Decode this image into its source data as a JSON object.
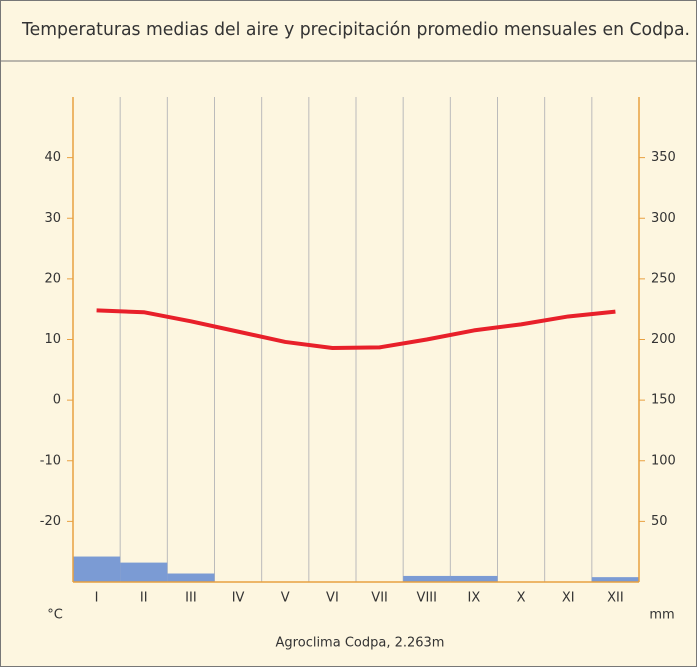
{
  "chart_data": {
    "type": "climograph",
    "title": "Temperaturas medias del aire y precipitación promedio mensuales en Codpa.",
    "caption": "Agroclima Codpa, 2.263m",
    "y_unit": "°C",
    "y2_unit": "mm",
    "categories": [
      "I",
      "II",
      "III",
      "IV",
      "V",
      "VI",
      "VII",
      "VIII",
      "IX",
      "X",
      "XI",
      "XII"
    ],
    "series": [
      {
        "type": "line",
        "color": "#e8202a",
        "values": [
          14.8,
          14.5,
          13.0,
          11.3,
          9.6,
          8.6,
          8.7,
          10.0,
          11.5,
          12.5,
          13.8,
          14.6
        ]
      },
      {
        "type": "bar",
        "axis": "y2",
        "color": "#7b9bd4",
        "values": [
          21,
          16,
          7,
          0,
          0,
          0,
          0,
          5,
          5,
          0,
          0,
          4
        ]
      }
    ],
    "ylim": [
      -30,
      50
    ],
    "yticks": [
      -20,
      -10,
      0,
      10,
      20,
      30,
      40
    ],
    "y2lim": [
      0,
      400
    ],
    "y2ticks": [
      50,
      100,
      150,
      200,
      250,
      300,
      350
    ],
    "grid": true
  }
}
